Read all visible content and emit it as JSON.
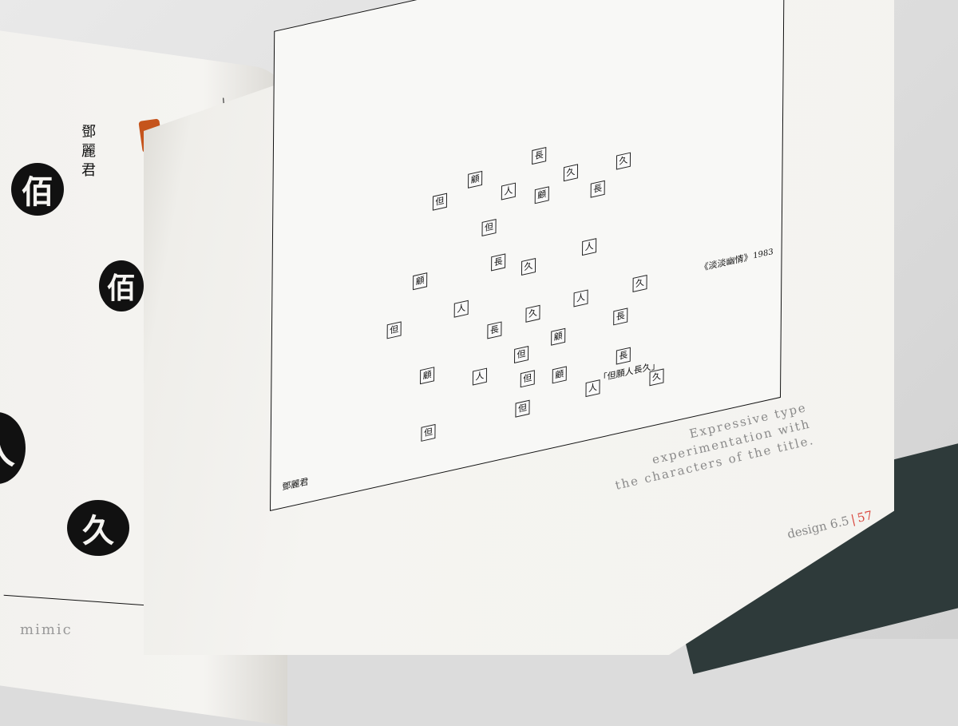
{
  "left_page": {
    "vertical_name": "鄧麗君",
    "circles": [
      "佰",
      "佰",
      "人",
      "久"
    ],
    "caption": "mimic"
  },
  "right_page": {
    "grid_characters": [
      "但",
      "顧",
      "長",
      "人",
      "久",
      "久",
      "但",
      "顧",
      "長",
      "顧",
      "長",
      "久",
      "人",
      "但",
      "人",
      "長",
      "久",
      "人",
      "久",
      "顧",
      "但",
      "顧",
      "長",
      "人",
      "但",
      "顧",
      "長",
      "但",
      "但",
      "人",
      "久"
    ],
    "artist": "鄧麗君",
    "title": "「但願人長久」",
    "album": "《淡淡幽情》",
    "year": "1983",
    "description_line1": "Expressive type experimentation with",
    "description_line2": "the characters of the title.",
    "page_label": "design 6.5",
    "page_separator": "|",
    "page_num": "57"
  }
}
